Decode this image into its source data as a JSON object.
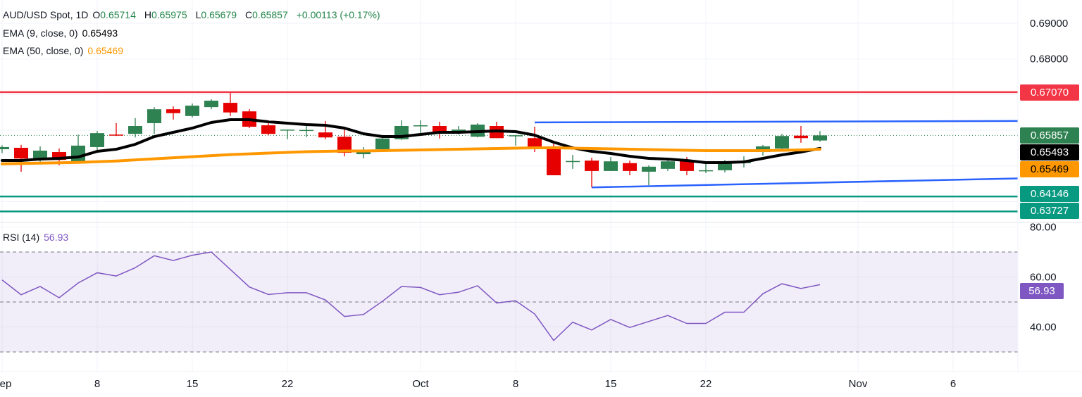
{
  "header": {
    "symbol": "AUD/USD Spot, 1D",
    "o_label": "O",
    "o": "0.65714",
    "h_label": "H",
    "h": "0.65975",
    "l_label": "L",
    "l": "0.65679",
    "c_label": "C",
    "c": "0.65857",
    "change": "+0.00113 (+0.17%)"
  },
  "indicators": {
    "ema9": {
      "label": "EMA (9, close, 0)",
      "value": "0.65493",
      "color": "#000000"
    },
    "ema50": {
      "label": "EMA (50, close, 0)",
      "value": "0.65469",
      "color": "#ff9800"
    },
    "rsi": {
      "label": "RSI (14)",
      "value": "56.93",
      "color": "#7e57c2"
    }
  },
  "price_labels": [
    {
      "text": "0.67070",
      "color": "#f23645",
      "text_color": "#ffffff"
    },
    {
      "text": "0.65857",
      "color": "#2e8150",
      "text_color": "#ffffff"
    },
    {
      "text": "0.65493",
      "color": "#000000",
      "text_color": "#ffffff"
    },
    {
      "text": "0.65469",
      "color": "#ff9800",
      "text_color": "#000000"
    },
    {
      "text": "0.64146",
      "color": "#089981",
      "text_color": "#ffffff"
    },
    {
      "text": "0.63727",
      "color": "#089981",
      "text_color": "#ffffff"
    }
  ],
  "rsi_label": {
    "text": "56.93",
    "color": "#7e57c2"
  },
  "chart_data": [
    {
      "type": "candlestick",
      "title": "AUD/USD Spot, 1D",
      "y_ticks": [
        "0.69000",
        "0.68000"
      ],
      "ylim": [
        0.6336,
        0.692
      ],
      "x_ticks": [
        {
          "label": "Sep",
          "bar": 0
        },
        {
          "label": "8",
          "bar": 5
        },
        {
          "label": "15",
          "bar": 10
        },
        {
          "label": "22",
          "bar": 15
        },
        {
          "label": "Oct",
          "bar": 22
        },
        {
          "label": "8",
          "bar": 27
        },
        {
          "label": "15",
          "bar": 32
        },
        {
          "label": "22",
          "bar": 37
        },
        {
          "label": "Nov",
          "bar": 45
        },
        {
          "label": "6",
          "bar": 50
        }
      ],
      "colors": {
        "up": "#2e8150",
        "down": "#e60000"
      },
      "candles": [
        [
          0.6547,
          0.6558,
          0.6536,
          0.6553
        ],
        [
          0.6551,
          0.6559,
          0.6484,
          0.6521
        ],
        [
          0.6521,
          0.6555,
          0.6504,
          0.6543
        ],
        [
          0.6539,
          0.6549,
          0.6502,
          0.6517
        ],
        [
          0.6511,
          0.6588,
          0.6511,
          0.6557
        ],
        [
          0.6553,
          0.6598,
          0.6545,
          0.6592
        ],
        [
          0.6588,
          0.662,
          0.6584,
          0.6586
        ],
        [
          0.659,
          0.6634,
          0.658,
          0.6612
        ],
        [
          0.662,
          0.6665,
          0.659,
          0.6659
        ],
        [
          0.6659,
          0.6667,
          0.663,
          0.6648
        ],
        [
          0.664,
          0.6675,
          0.6636,
          0.6669
        ],
        [
          0.6665,
          0.6687,
          0.6659,
          0.6683
        ],
        [
          0.6677,
          0.6705,
          0.664,
          0.665
        ],
        [
          0.6653,
          0.6659,
          0.6606,
          0.661
        ],
        [
          0.6614,
          0.662,
          0.6586,
          0.659
        ],
        [
          0.66,
          0.6602,
          0.6575,
          0.6602
        ],
        [
          0.66,
          0.6616,
          0.6581,
          0.6601
        ],
        [
          0.6594,
          0.6626,
          0.6575,
          0.658
        ],
        [
          0.6582,
          0.6604,
          0.6527,
          0.6537
        ],
        [
          0.6533,
          0.6553,
          0.6521,
          0.6545
        ],
        [
          0.6547,
          0.6579,
          0.6545,
          0.6577
        ],
        [
          0.6575,
          0.6628,
          0.6573,
          0.6612
        ],
        [
          0.6612,
          0.6628,
          0.659,
          0.6614
        ],
        [
          0.6612,
          0.6624,
          0.6577,
          0.6594
        ],
        [
          0.6592,
          0.6612,
          0.6588,
          0.6602
        ],
        [
          0.6582,
          0.662,
          0.658,
          0.6616
        ],
        [
          0.6612,
          0.6624,
          0.6578,
          0.6578
        ],
        [
          0.6585,
          0.6587,
          0.6557,
          0.6586
        ],
        [
          0.6578,
          0.661,
          0.6539,
          0.6553
        ],
        [
          0.6555,
          0.6571,
          0.6474,
          0.6474
        ],
        [
          0.6512,
          0.6531,
          0.6492,
          0.6514
        ],
        [
          0.6515,
          0.6523,
          0.644,
          0.6486
        ],
        [
          0.6486,
          0.6525,
          0.6486,
          0.6513
        ],
        [
          0.6508,
          0.6515,
          0.6474,
          0.6486
        ],
        [
          0.6484,
          0.6502,
          0.6446,
          0.6498
        ],
        [
          0.6492,
          0.6523,
          0.6486,
          0.6513
        ],
        [
          0.6515,
          0.6525,
          0.6474,
          0.6486
        ],
        [
          0.6487,
          0.6509,
          0.648,
          0.6488
        ],
        [
          0.6488,
          0.6517,
          0.6482,
          0.6511
        ],
        [
          0.6509,
          0.6527,
          0.6496,
          0.6511
        ],
        [
          0.6539,
          0.6559,
          0.6529,
          0.6555
        ],
        [
          0.6549,
          0.659,
          0.6543,
          0.6584
        ],
        [
          0.6585,
          0.6612,
          0.6565,
          0.6578
        ],
        [
          0.65714,
          0.65975,
          0.65679,
          0.65857
        ]
      ],
      "series": [
        {
          "name": "EMA (9, close, 0)",
          "color": "#000000",
          "values": [
            0.65154,
            0.65154,
            0.65193,
            0.65213,
            0.65252,
            0.6541,
            0.65469,
            0.65607,
            0.65824,
            0.65943,
            0.66061,
            0.66219,
            0.66298,
            0.66298,
            0.66239,
            0.66199,
            0.6616,
            0.6614,
            0.66061,
            0.65903,
            0.65824,
            0.65824,
            0.65884,
            0.65943,
            0.65943,
            0.65963,
            0.65982,
            0.65963,
            0.65864,
            0.65667,
            0.65509,
            0.6541,
            0.65351,
            0.65272,
            0.65213,
            0.65193,
            0.65154,
            0.65095,
            0.65095,
            0.65114,
            0.65213,
            0.65312,
            0.65391,
            0.65493
          ]
        },
        {
          "name": "EMA (50, close, 0)",
          "color": "#ff9800",
          "values": [
            0.6506,
            0.6507,
            0.6508,
            0.6509,
            0.651,
            0.6512,
            0.6514,
            0.6517,
            0.652,
            0.6523,
            0.6526,
            0.6529,
            0.6532,
            0.6534,
            0.6536,
            0.6538,
            0.654,
            0.6541,
            0.6542,
            0.6542,
            0.6543,
            0.6544,
            0.6545,
            0.6546,
            0.6547,
            0.6548,
            0.6549,
            0.655,
            0.6551,
            0.6551,
            0.655,
            0.6549,
            0.6548,
            0.6547,
            0.6546,
            0.6545,
            0.6544,
            0.6543,
            0.6543,
            0.6543,
            0.6543,
            0.6544,
            0.6545,
            0.65469
          ]
        }
      ],
      "horizontal_lines": [
        {
          "value": 0.6707,
          "color": "#f23645"
        },
        {
          "value": 0.64146,
          "color": "#089981"
        },
        {
          "value": 0.63727,
          "color": "#089981"
        }
      ],
      "last_price_line": {
        "value": 0.65857,
        "color": "#2e8150",
        "style": "dotted"
      },
      "trendlines": [
        {
          "from": {
            "bar": 28,
            "value": 0.6622
          },
          "to": {
            "bar": 53.4,
            "value": 0.6626
          },
          "color": "#2962ff"
        },
        {
          "from": {
            "bar": 31,
            "value": 0.644
          },
          "to": {
            "bar": 53.4,
            "value": 0.6465
          },
          "color": "#2962ff"
        }
      ]
    },
    {
      "type": "line",
      "title": "RSI (14)",
      "y_ticks": [
        "80.00",
        "60.00",
        "40.00"
      ],
      "ylim": [
        20,
        80
      ],
      "bands": {
        "upper": 70,
        "middle": 50,
        "lower": 30,
        "fill": "#7e57c2"
      },
      "series": [
        {
          "name": "RSI (14)",
          "color": "#7e57c2",
          "values": [
            58.8,
            52.9,
            56.2,
            51.7,
            57.6,
            61.7,
            60.4,
            63.7,
            68.5,
            66.6,
            68.7,
            70.0,
            63.0,
            56.0,
            53.0,
            53.7,
            53.7,
            50.8,
            44.2,
            45.0,
            50.3,
            56.2,
            55.8,
            52.9,
            53.9,
            56.5,
            49.6,
            50.5,
            45.2,
            34.6,
            41.9,
            38.8,
            43.0,
            39.8,
            42.2,
            44.6,
            41.4,
            41.4,
            45.9,
            45.9,
            53.3,
            57.3,
            55.4,
            56.93
          ]
        }
      ]
    }
  ]
}
